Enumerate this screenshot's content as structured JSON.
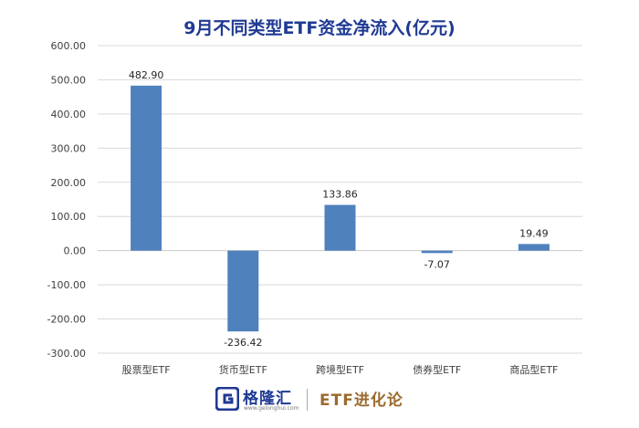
{
  "chart_data": {
    "type": "bar",
    "title": "9月不同类型ETF资金净流入(亿元)",
    "categories": [
      "股票型ETF",
      "货币型ETF",
      "跨境型ETF",
      "债券型ETF",
      "商品型ETF"
    ],
    "values": [
      482.9,
      -236.42,
      133.86,
      -7.07,
      19.49
    ],
    "value_labels": [
      "482.90",
      "-236.42",
      "133.86",
      "-7.07",
      "19.49"
    ],
    "ylim": [
      -300,
      600
    ],
    "yticks": [
      600,
      500,
      400,
      300,
      200,
      100,
      0,
      -100,
      -200,
      -300
    ],
    "ytick_labels": [
      "600.00",
      "500.00",
      "400.00",
      "300.00",
      "200.00",
      "100.00",
      "0.00",
      "-100.00",
      "-200.00",
      "-300.00"
    ],
    "xlabel": "",
    "ylabel": "",
    "grid": true,
    "legend": "none",
    "bar_color": "#4f81bd"
  },
  "footer": {
    "brand_name": "格隆汇",
    "brand_url": "www.gelonghui.com",
    "column_name": "ETF进化论",
    "logo_letter": "G"
  }
}
